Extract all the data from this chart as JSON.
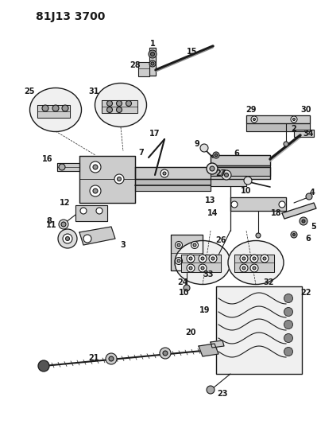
{
  "title": "81J13 3700",
  "bg_color": "#ffffff",
  "line_color": "#1a1a1a",
  "title_fontsize": 10,
  "label_fontsize": 7,
  "fig_width": 3.99,
  "fig_height": 5.33,
  "dpi": 100
}
